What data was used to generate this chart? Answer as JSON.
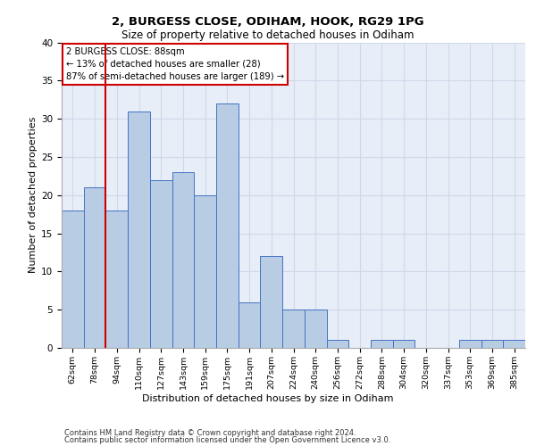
{
  "title1": "2, BURGESS CLOSE, ODIHAM, HOOK, RG29 1PG",
  "title2": "Size of property relative to detached houses in Odiham",
  "xlabel": "Distribution of detached houses by size in Odiham",
  "ylabel": "Number of detached properties",
  "categories": [
    "62sqm",
    "78sqm",
    "94sqm",
    "110sqm",
    "127sqm",
    "143sqm",
    "159sqm",
    "175sqm",
    "191sqm",
    "207sqm",
    "224sqm",
    "240sqm",
    "256sqm",
    "272sqm",
    "288sqm",
    "304sqm",
    "320sqm",
    "337sqm",
    "353sqm",
    "369sqm",
    "385sqm"
  ],
  "values": [
    18,
    21,
    18,
    31,
    22,
    23,
    20,
    32,
    6,
    12,
    5,
    5,
    1,
    0,
    1,
    1,
    0,
    0,
    1,
    1,
    1
  ],
  "bar_color": "#b8cce4",
  "bar_edge_color": "#4472c4",
  "ylim": [
    0,
    40
  ],
  "yticks": [
    0,
    5,
    10,
    15,
    20,
    25,
    30,
    35,
    40
  ],
  "annotation_title": "2 BURGESS CLOSE: 88sqm",
  "annotation_line1": "← 13% of detached houses are smaller (28)",
  "annotation_line2": "87% of semi-detached houses are larger (189) →",
  "annotation_box_color": "#ffffff",
  "annotation_box_edge": "#cc0000",
  "vline_color": "#cc0000",
  "grid_color": "#d0d8e8",
  "bg_color": "#e8eef8",
  "footer1": "Contains HM Land Registry data © Crown copyright and database right 2024.",
  "footer2": "Contains public sector information licensed under the Open Government Licence v3.0."
}
